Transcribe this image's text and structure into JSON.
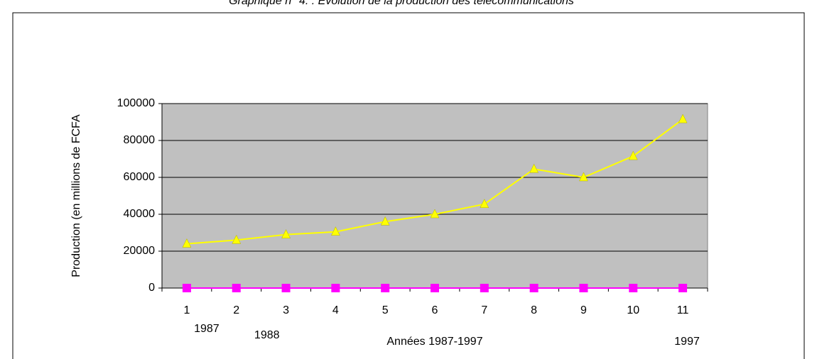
{
  "chart_data": {
    "type": "line",
    "title": "Graphique n° 4. : Evolution de la production des télécommunications",
    "x_label": "Années 1987-1997",
    "y_label": "Production (en millions de FCFA",
    "categories": [
      "1",
      "2",
      "3",
      "4",
      "5",
      "6",
      "7",
      "8",
      "9",
      "10",
      "11"
    ],
    "annotations": [
      {
        "text": "1987",
        "category": 0
      },
      {
        "text": "1988",
        "category": 1
      },
      {
        "text": "1997",
        "category": 10
      }
    ],
    "series": [
      {
        "color": "#ffff00",
        "marker": "triangle",
        "values": [
          24000,
          26000,
          29000,
          30500,
          36000,
          40000,
          45500,
          64500,
          60000,
          71500,
          91500
        ]
      },
      {
        "color": "#ff00ff",
        "marker": "square",
        "values": [
          0,
          0,
          0,
          0,
          0,
          0,
          0,
          0,
          0,
          0,
          0
        ]
      }
    ],
    "ylim": [
      0,
      100000
    ],
    "yticks": [
      0,
      20000,
      40000,
      60000,
      80000,
      100000
    ],
    "grid": true,
    "plot_background": "#c0c0c0"
  }
}
